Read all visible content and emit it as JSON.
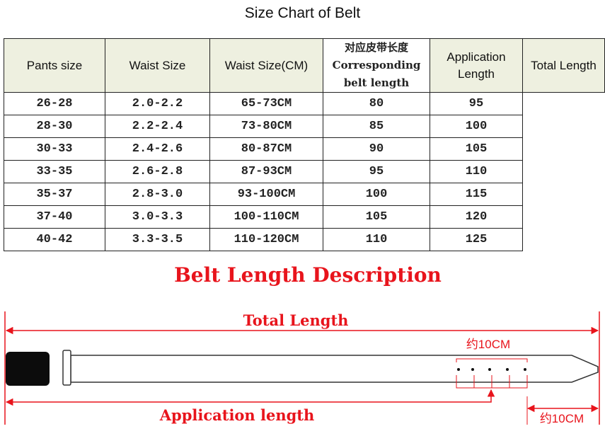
{
  "title": "Size Chart of Belt",
  "table": {
    "headers": [
      "Pants size",
      "Waist Size",
      "Waist Size(CM)",
      "",
      "Application Length",
      "Total Length"
    ],
    "note_cn": "对应皮带长度",
    "note_en_1": "Corresponding",
    "note_en_2": "belt length",
    "rows": [
      [
        "26-28",
        "2.0-2.2",
        "65-73CM",
        "80",
        "95"
      ],
      [
        "28-30",
        "2.2-2.4",
        "73-80CM",
        "85",
        "100"
      ],
      [
        "30-33",
        "2.4-2.6",
        "80-87CM",
        "90",
        "105"
      ],
      [
        "33-35",
        "2.6-2.8",
        "87-93CM",
        "95",
        "110"
      ],
      [
        "35-37",
        "2.8-3.0",
        "93-100CM",
        "100",
        "115"
      ],
      [
        "37-40",
        "3.0-3.3",
        "100-110CM",
        "105",
        "120"
      ],
      [
        "40-42",
        "3.3-3.5",
        "110-120CM",
        "110",
        "125"
      ]
    ]
  },
  "diagram": {
    "title": "Belt Length Description",
    "total_label": "Total Length",
    "application_label": "Application length",
    "holes_label": "约10CM",
    "tip_label": "约10CM",
    "accent_color": "#e8141c"
  }
}
